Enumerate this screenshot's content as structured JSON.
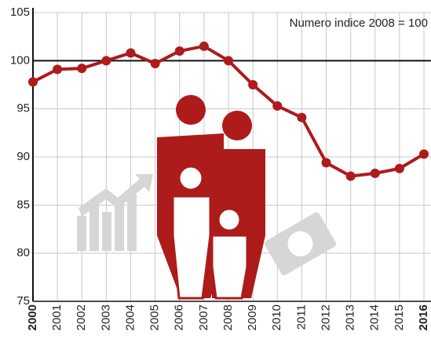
{
  "chart_data": {
    "type": "line",
    "annotation": "Numero indice 2008 = 100",
    "categories": [
      "2000",
      "2001",
      "2002",
      "2003",
      "2004",
      "2005",
      "2006",
      "2007",
      "2008",
      "2009",
      "2010",
      "2011",
      "2012",
      "2013",
      "2014",
      "2015",
      "2016"
    ],
    "series": [
      {
        "color": "#ad1b1b",
        "values": [
          97.8,
          99.1,
          99.2,
          100.0,
          100.8,
          99.7,
          101.0,
          101.5,
          100.0,
          97.5,
          95.3,
          94.1,
          89.4,
          88.0,
          88.3,
          88.8,
          90.3
        ]
      }
    ],
    "ylim": [
      75,
      105
    ],
    "yticks": [
      75,
      80,
      85,
      90,
      95,
      100,
      105
    ],
    "reference_line": 100,
    "grid": true
  }
}
